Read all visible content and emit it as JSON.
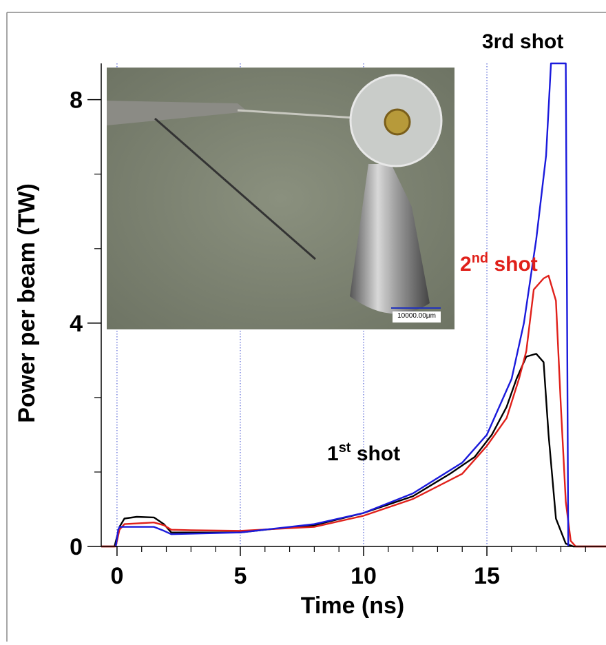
{
  "chart_data": {
    "type": "line",
    "xlabel": "Time (ns)",
    "ylabel": "Power per beam (TW)",
    "xlim": [
      -0.64,
      19.83
    ],
    "ylim": [
      0,
      8.65
    ],
    "xticks": [
      0,
      5,
      10,
      15
    ],
    "x_minor_ticks": [
      1,
      2,
      3,
      4,
      6,
      7,
      8,
      9,
      11,
      12,
      13,
      14,
      16,
      17,
      18,
      19
    ],
    "yticks": [
      0,
      4,
      8
    ],
    "y_minor_ticks": [
      1.333,
      2.667,
      5.333,
      6.667
    ],
    "grid": true,
    "grid_color": "#3344cc",
    "inset_scale_label": "10000.00μm",
    "series": [
      {
        "name": "1st shot",
        "color": "#000000",
        "superscript_ordinal": true,
        "label_color": "#000000",
        "x": [
          -0.64,
          -0.1,
          0.1,
          0.3,
          0.8,
          1.5,
          1.9,
          2.2,
          3,
          5,
          6,
          8,
          10,
          12,
          13.5,
          14.5,
          15.2,
          15.8,
          16.2,
          16.6,
          17,
          17.3,
          17.5,
          17.8,
          18.2,
          18.5,
          19.83
        ],
        "values": [
          0,
          0,
          0.35,
          0.5,
          0.53,
          0.52,
          0.4,
          0.25,
          0.25,
          0.25,
          0.3,
          0.38,
          0.6,
          0.9,
          1.3,
          1.6,
          2.0,
          2.5,
          3.0,
          3.4,
          3.45,
          3.3,
          2.0,
          0.5,
          0.05,
          0,
          0
        ]
      },
      {
        "name": "2nd shot",
        "color": "#e0201a",
        "superscript_ordinal": true,
        "label_color": "#e0201a",
        "x": [
          -0.64,
          -0.05,
          0.1,
          0.3,
          1.5,
          1.9,
          2.2,
          3,
          5,
          8,
          10,
          12,
          14,
          15,
          15.8,
          16.3,
          16.6,
          16.9,
          17.3,
          17.5,
          17.8,
          18.0,
          18.2,
          18.4,
          18.6,
          19.83
        ],
        "values": [
          0,
          0,
          0.3,
          0.4,
          0.43,
          0.38,
          0.3,
          0.29,
          0.28,
          0.35,
          0.55,
          0.85,
          1.3,
          1.8,
          2.3,
          3.0,
          3.5,
          4.6,
          4.8,
          4.85,
          4.4,
          2.5,
          0.8,
          0.1,
          0,
          0
        ]
      },
      {
        "name": "3rd shot",
        "color": "#1a1adc",
        "superscript_ordinal": false,
        "label_color": "#000000",
        "x": [
          -0.05,
          0.05,
          0.1,
          1.5,
          1.9,
          2.2,
          5,
          8,
          10,
          12,
          14,
          15,
          16,
          16.5,
          17,
          17.4,
          17.6,
          18.2,
          18.3
        ],
        "values": [
          0,
          0.3,
          0.35,
          0.35,
          0.28,
          0.22,
          0.25,
          0.4,
          0.6,
          0.95,
          1.5,
          2.0,
          3.0,
          4.0,
          5.5,
          7.0,
          8.65,
          8.65,
          0
        ]
      }
    ]
  }
}
